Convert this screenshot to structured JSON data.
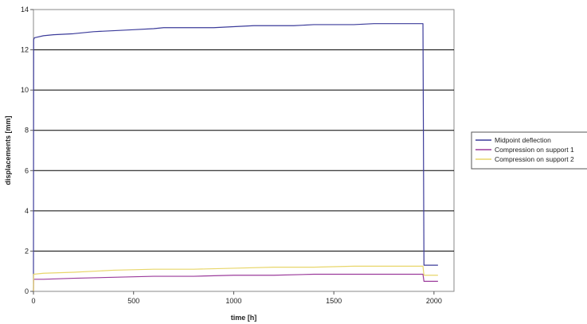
{
  "chart_data": {
    "type": "line",
    "title": "",
    "xlabel": "time [h]",
    "ylabel": "displacements [mm]",
    "xlim": [
      0,
      2100
    ],
    "ylim": [
      0,
      14
    ],
    "xticks": [
      0,
      500,
      1000,
      1500,
      2000
    ],
    "yticks": [
      0,
      2,
      4,
      6,
      8,
      10,
      12,
      14
    ],
    "xtick_labels": [
      "0",
      "500",
      "1000",
      "1500",
      "2000"
    ],
    "ytick_labels": [
      "0",
      "2",
      "4",
      "6",
      "8",
      "10",
      "12",
      "14"
    ],
    "grid": "horizontal",
    "legend_position": "right",
    "series": [
      {
        "name": "Midpoint deflection",
        "color": "#3b3b9a",
        "x": [
          0,
          1,
          5,
          50,
          100,
          200,
          300,
          400,
          500,
          600,
          650,
          700,
          800,
          900,
          1000,
          1100,
          1200,
          1300,
          1400,
          1500,
          1600,
          1700,
          1800,
          1900,
          1945,
          1950,
          2000,
          2020
        ],
        "y": [
          0,
          12.5,
          12.6,
          12.7,
          12.75,
          12.8,
          12.9,
          12.95,
          13.0,
          13.05,
          13.1,
          13.1,
          13.1,
          13.1,
          13.15,
          13.2,
          13.2,
          13.2,
          13.25,
          13.25,
          13.25,
          13.3,
          13.3,
          13.3,
          13.3,
          1.3,
          1.3,
          1.3
        ]
      },
      {
        "name": "Compression on support 1",
        "color": "#9b3b9b",
        "x": [
          0,
          1,
          50,
          200,
          400,
          600,
          800,
          1000,
          1200,
          1400,
          1600,
          1800,
          1945,
          1950,
          2000,
          2020
        ],
        "y": [
          0,
          0.6,
          0.6,
          0.65,
          0.7,
          0.75,
          0.75,
          0.8,
          0.8,
          0.85,
          0.85,
          0.85,
          0.85,
          0.5,
          0.5,
          0.5
        ]
      },
      {
        "name": "Compression on support 2",
        "color": "#e8d66a",
        "x": [
          0,
          1,
          50,
          200,
          400,
          600,
          800,
          1000,
          1200,
          1400,
          1600,
          1800,
          1945,
          1950,
          2000,
          2020
        ],
        "y": [
          0,
          0.85,
          0.9,
          0.95,
          1.05,
          1.1,
          1.1,
          1.15,
          1.2,
          1.2,
          1.25,
          1.25,
          1.25,
          0.8,
          0.8,
          0.8
        ]
      }
    ]
  }
}
